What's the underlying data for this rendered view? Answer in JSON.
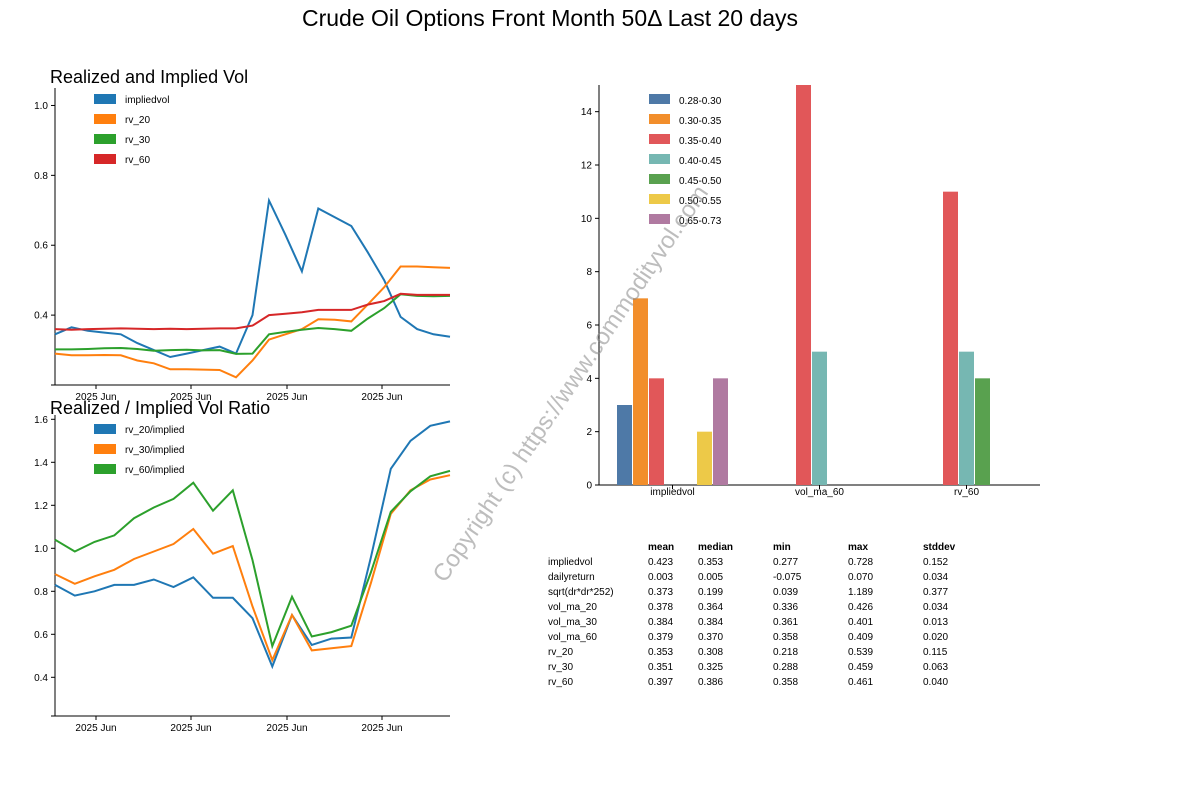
{
  "page_title": "Crude Oil Options Front Month 50Δ Last 20 days",
  "watermark": "Copyright (c) https://www.commodityvol.com",
  "chart_data": [
    {
      "type": "line",
      "title": "Realized and Implied Vol",
      "x_tick_labels": [
        "2025 Jun",
        "2025 Jun",
        "2025 Jun",
        "2025 Jun"
      ],
      "y_ticks": [
        0.4,
        0.6,
        0.8,
        1.0
      ],
      "ylim": [
        0.2,
        1.05
      ],
      "legend_position": "top-left",
      "series": [
        {
          "name": "impliedvol",
          "color": "#1f77b4",
          "values": [
            0.345,
            0.365,
            0.355,
            0.35,
            0.345,
            0.32,
            0.3,
            0.28,
            0.29,
            0.3,
            0.31,
            0.29,
            0.4,
            0.728,
            0.63,
            0.525,
            0.705,
            0.68,
            0.655,
            0.58,
            0.5,
            0.395,
            0.36,
            0.345,
            0.338
          ]
        },
        {
          "name": "rv_20",
          "color": "#ff7f0e",
          "values": [
            0.29,
            0.285,
            0.285,
            0.286,
            0.285,
            0.27,
            0.262,
            0.245,
            0.245,
            0.244,
            0.243,
            0.222,
            0.27,
            0.33,
            0.345,
            0.36,
            0.388,
            0.387,
            0.382,
            0.43,
            0.48,
            0.539,
            0.539,
            0.537,
            0.535
          ]
        },
        {
          "name": "rv_30",
          "color": "#2ca02c",
          "values": [
            0.302,
            0.302,
            0.303,
            0.305,
            0.306,
            0.303,
            0.298,
            0.3,
            0.301,
            0.299,
            0.3,
            0.289,
            0.29,
            0.345,
            0.352,
            0.358,
            0.363,
            0.36,
            0.355,
            0.39,
            0.42,
            0.46,
            0.455,
            0.454,
            0.455
          ]
        },
        {
          "name": "rv_60",
          "color": "#d62728",
          "values": [
            0.36,
            0.358,
            0.36,
            0.361,
            0.362,
            0.361,
            0.36,
            0.361,
            0.36,
            0.361,
            0.362,
            0.362,
            0.37,
            0.4,
            0.404,
            0.408,
            0.415,
            0.415,
            0.415,
            0.43,
            0.44,
            0.461,
            0.458,
            0.458,
            0.458
          ]
        }
      ]
    },
    {
      "type": "line",
      "title": "Realized / Implied Vol Ratio",
      "x_tick_labels": [
        "2025 Jun",
        "2025 Jun",
        "2025 Jun",
        "2025 Jun"
      ],
      "y_ticks": [
        0.4,
        0.6,
        0.8,
        1.0,
        1.2,
        1.4,
        1.6
      ],
      "ylim": [
        0.22,
        1.62
      ],
      "legend_position": "top-left",
      "series": [
        {
          "name": "rv_20/implied",
          "color": "#1f77b4",
          "values": [
            0.83,
            0.78,
            0.8,
            0.83,
            0.83,
            0.855,
            0.82,
            0.865,
            0.77,
            0.77,
            0.675,
            0.45,
            0.69,
            0.55,
            0.58,
            0.585,
            0.96,
            1.37,
            1.5,
            1.57,
            1.59
          ]
        },
        {
          "name": "rv_30/implied",
          "color": "#ff7f0e",
          "values": [
            0.88,
            0.835,
            0.87,
            0.9,
            0.95,
            0.985,
            1.02,
            1.09,
            0.975,
            1.01,
            0.73,
            0.48,
            0.69,
            0.525,
            0.535,
            0.545,
            0.84,
            1.16,
            1.27,
            1.32,
            1.34
          ]
        },
        {
          "name": "rv_60/implied",
          "color": "#2ca02c",
          "values": [
            1.04,
            0.985,
            1.03,
            1.06,
            1.14,
            1.19,
            1.23,
            1.305,
            1.175,
            1.27,
            0.945,
            0.545,
            0.775,
            0.59,
            0.61,
            0.64,
            0.89,
            1.17,
            1.265,
            1.335,
            1.36
          ]
        }
      ]
    },
    {
      "type": "bar",
      "title": "",
      "categories": [
        "impliedvol",
        "vol_ma_60",
        "rv_60"
      ],
      "y_ticks": [
        0,
        2,
        4,
        6,
        8,
        10,
        12,
        14
      ],
      "ylim": [
        0,
        15
      ],
      "legend_position": "top-left",
      "series": [
        {
          "name": "0.28-0.30",
          "color": "#4e79a7",
          "values": [
            3,
            0,
            0
          ]
        },
        {
          "name": "0.30-0.35",
          "color": "#f28e2b",
          "values": [
            7,
            0,
            0
          ]
        },
        {
          "name": "0.35-0.40",
          "color": "#e15759",
          "values": [
            4,
            15,
            11
          ]
        },
        {
          "name": "0.40-0.45",
          "color": "#76b7b2",
          "values": [
            0,
            5,
            5
          ]
        },
        {
          "name": "0.45-0.50",
          "color": "#59a14f",
          "values": [
            0,
            0,
            4
          ]
        },
        {
          "name": "0.50-0.55",
          "color": "#edc948",
          "values": [
            2,
            0,
            0
          ]
        },
        {
          "name": "0.65-0.73",
          "color": "#b07aa1",
          "values": [
            4,
            0,
            0
          ]
        }
      ]
    },
    {
      "type": "table",
      "columns": [
        "",
        "mean",
        "median",
        "min",
        "max",
        "stddev"
      ],
      "rows": [
        [
          "impliedvol",
          "0.423",
          "0.353",
          "0.277",
          "0.728",
          "0.152"
        ],
        [
          "dailyreturn",
          "0.003",
          "0.005",
          "-0.075",
          "0.070",
          "0.034"
        ],
        [
          "sqrt(dr*dr*252)",
          "0.373",
          "0.199",
          "0.039",
          "1.189",
          "0.377"
        ],
        [
          "vol_ma_20",
          "0.378",
          "0.364",
          "0.336",
          "0.426",
          "0.034"
        ],
        [
          "vol_ma_30",
          "0.384",
          "0.384",
          "0.361",
          "0.401",
          "0.013"
        ],
        [
          "vol_ma_60",
          "0.379",
          "0.370",
          "0.358",
          "0.409",
          "0.020"
        ],
        [
          "rv_20",
          "0.353",
          "0.308",
          "0.218",
          "0.539",
          "0.115"
        ],
        [
          "rv_30",
          "0.351",
          "0.325",
          "0.288",
          "0.459",
          "0.063"
        ],
        [
          "rv_60",
          "0.397",
          "0.386",
          "0.358",
          "0.461",
          "0.040"
        ]
      ]
    }
  ]
}
